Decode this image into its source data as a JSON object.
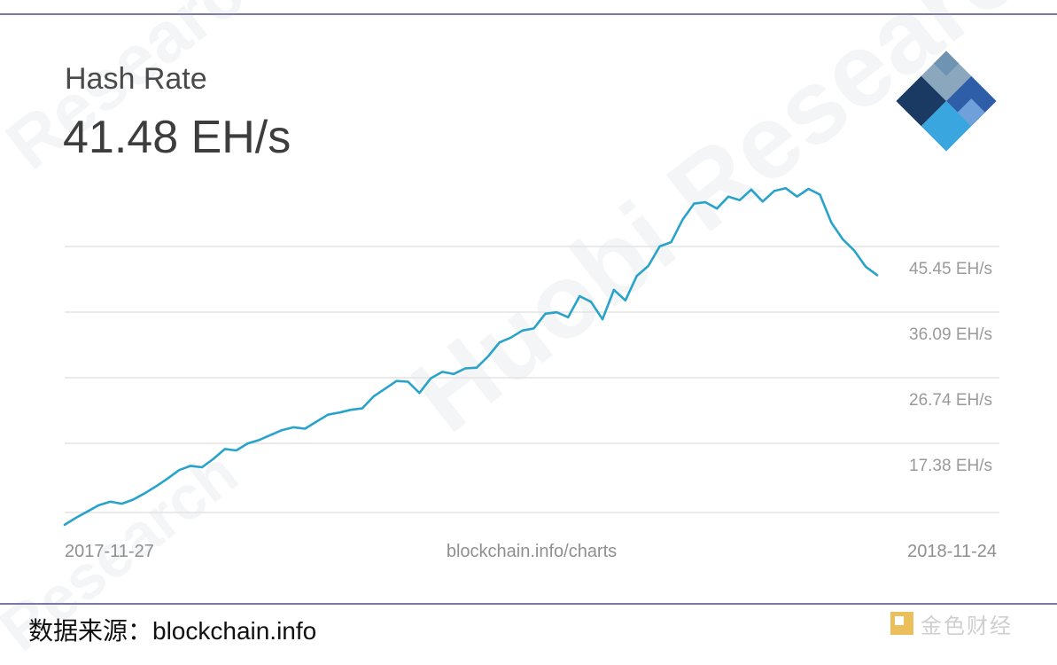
{
  "caption": "数据来源：blockchain.info",
  "watermark": {
    "brand": "Huobi Research"
  },
  "bottom_logo": {
    "text": "金色财经"
  },
  "colors": {
    "line": "#29a3c9",
    "gridline": "#e3e3e3",
    "rule": "#7b77a8"
  },
  "chart_data": {
    "type": "line",
    "title": "Hash Rate",
    "current_value": "41.48 EH/s",
    "source": "blockchain.info/charts",
    "x_start_label": "2017-11-27",
    "x_end_label": "2018-11-24",
    "x_range": [
      "2017-11-27",
      "2018-11-24"
    ],
    "y_unit": "EH/s",
    "y_ticks": [
      {
        "value": 45.45,
        "label": "45.45 EH/s"
      },
      {
        "value": 36.09,
        "label": "36.09 EH/s"
      },
      {
        "value": 26.74,
        "label": "26.74 EH/s"
      },
      {
        "value": 17.38,
        "label": "17.38 EH/s"
      }
    ],
    "grid": true,
    "series": [
      {
        "values": [
          8.8,
          9.8,
          10.7,
          11.6,
          12.1,
          11.8,
          12.4,
          13.3,
          14.3,
          15.4,
          16.6,
          17.2,
          17.0,
          18.2,
          19.6,
          19.4,
          20.4,
          20.9,
          21.6,
          22.3,
          22.7,
          22.5,
          23.5,
          24.5,
          24.8,
          25.2,
          25.4,
          27.1,
          28.2,
          29.3,
          29.2,
          27.6,
          29.7,
          30.6,
          30.3,
          31.1,
          31.2,
          32.8,
          34.8,
          35.5,
          36.5,
          36.8,
          38.9,
          39.1,
          38.4,
          41.4,
          40.6,
          38.1,
          42.3,
          40.8,
          44.3,
          45.7,
          48.5,
          49.1,
          52.3,
          54.6,
          54.8,
          53.9,
          55.6,
          55.1,
          56.6,
          54.9,
          56.4,
          56.8,
          55.6,
          56.7,
          55.9,
          51.9,
          49.5,
          47.9,
          45.6,
          44.4
        ]
      }
    ]
  }
}
